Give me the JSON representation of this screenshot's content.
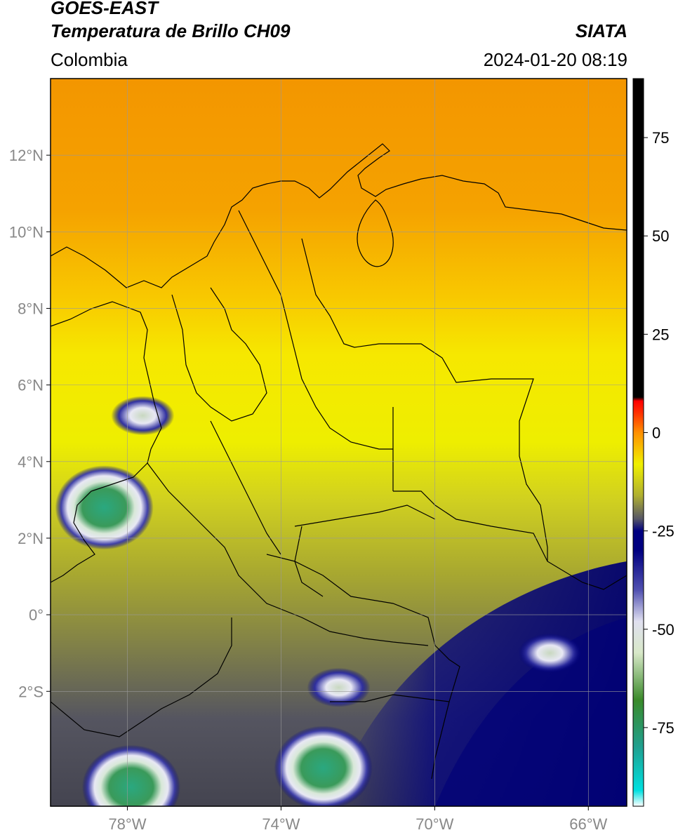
{
  "header": {
    "satellite": "GOES-EAST",
    "product": "Temperatura de Brillo CH09",
    "agency": "SIATA",
    "region": "Colombia",
    "timestamp": "2024-01-20 08:19"
  },
  "map": {
    "lon_range": [
      -80,
      -65
    ],
    "lat_range": [
      -5,
      14
    ],
    "lon_ticks": [
      {
        "value": -78,
        "label": "78°W"
      },
      {
        "value": -74,
        "label": "74°W"
      },
      {
        "value": -70,
        "label": "70°W"
      },
      {
        "value": -66,
        "label": "66°W"
      }
    ],
    "lat_ticks": [
      {
        "value": 12,
        "label": "12°N"
      },
      {
        "value": 10,
        "label": "10°N"
      },
      {
        "value": 8,
        "label": "8°N"
      },
      {
        "value": 6,
        "label": "6°N"
      },
      {
        "value": 4,
        "label": "4°N"
      },
      {
        "value": 2,
        "label": "2°N"
      },
      {
        "value": 0,
        "label": "0°"
      },
      {
        "value": -2,
        "label": "2°S"
      }
    ],
    "cloud_cells": [
      {
        "lon": -78.6,
        "lat": 2.8,
        "kind": "deep"
      },
      {
        "lon": -77.6,
        "lat": 5.2,
        "kind": "moderate"
      },
      {
        "lon": -72.9,
        "lat": -4.0,
        "kind": "deep"
      },
      {
        "lon": -77.9,
        "lat": -4.5,
        "kind": "deep"
      },
      {
        "lon": -72.5,
        "lat": -1.9,
        "kind": "moderate"
      },
      {
        "lon": -67.0,
        "lat": -1.0,
        "kind": "moderate"
      }
    ]
  },
  "colorbar": {
    "unit_note": "",
    "range": [
      -95,
      90
    ],
    "ticks": [
      {
        "value": 75,
        "label": "75"
      },
      {
        "value": 50,
        "label": "50"
      },
      {
        "value": 25,
        "label": "25"
      },
      {
        "value": 0,
        "label": "0"
      },
      {
        "value": -25,
        "label": "-25"
      },
      {
        "value": -50,
        "label": "-50"
      },
      {
        "value": -75,
        "label": "-75"
      }
    ],
    "stops": [
      {
        "value": -95,
        "color": "#ffffff"
      },
      {
        "value": -91,
        "color": "#00e0e0"
      },
      {
        "value": -80,
        "color": "#20a090"
      },
      {
        "value": -68,
        "color": "#3a8a2a"
      },
      {
        "value": -56,
        "color": "#d8e8c8"
      },
      {
        "value": -48,
        "color": "#e0e0f0"
      },
      {
        "value": -40,
        "color": "#5050b0"
      },
      {
        "value": -30,
        "color": "#000080"
      },
      {
        "value": -25,
        "color": "#000080"
      },
      {
        "value": -22,
        "color": "#555566"
      },
      {
        "value": -16,
        "color": "#b0b030"
      },
      {
        "value": -8,
        "color": "#f0f000"
      },
      {
        "value": 0,
        "color": "#ff9000"
      },
      {
        "value": 5,
        "color": "#ff3000"
      },
      {
        "value": 8,
        "color": "#ff0000"
      },
      {
        "value": 9,
        "color": "#000000"
      },
      {
        "value": 90,
        "color": "#000000"
      }
    ]
  },
  "colors": {
    "grid": "#999999",
    "tick_label": "#888888",
    "border": "#000000"
  }
}
